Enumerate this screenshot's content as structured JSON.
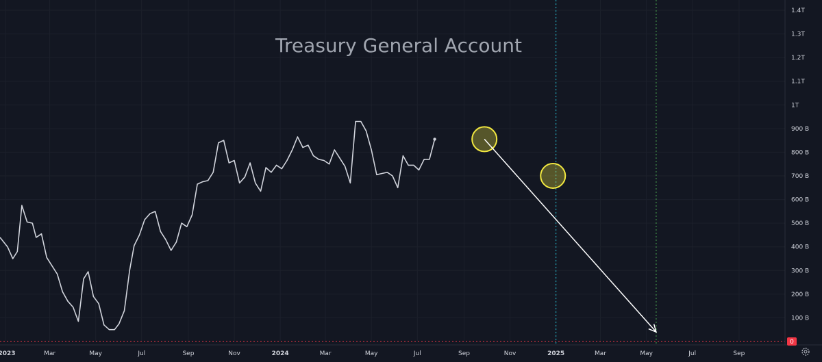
{
  "chart_data": {
    "type": "line",
    "title": "Treasury General Account",
    "y_ticks": [
      {
        "value": 100,
        "label": "100 B"
      },
      {
        "value": 200,
        "label": "200 B"
      },
      {
        "value": 300,
        "label": "300 B"
      },
      {
        "value": 400,
        "label": "400 B"
      },
      {
        "value": 500,
        "label": "500 B"
      },
      {
        "value": 600,
        "label": "600 B"
      },
      {
        "value": 700,
        "label": "700 B"
      },
      {
        "value": 800,
        "label": "800 B"
      },
      {
        "value": 900,
        "label": "900 B"
      },
      {
        "value": 1000,
        "label": "1T"
      },
      {
        "value": 1100,
        "label": "1.1T"
      },
      {
        "value": 1200,
        "label": "1.2T"
      },
      {
        "value": 1300,
        "label": "1.3T"
      },
      {
        "value": 1400,
        "label": "1.4T"
      }
    ],
    "zero_label": "0",
    "ylim": [
      0,
      1400
    ],
    "x_ticks": [
      {
        "date": "2023-01-01",
        "label": "2023",
        "bold": true
      },
      {
        "date": "2023-03-01",
        "label": "Mar"
      },
      {
        "date": "2023-05-01",
        "label": "May"
      },
      {
        "date": "2023-07-01",
        "label": "Jul"
      },
      {
        "date": "2023-09-01",
        "label": "Sep"
      },
      {
        "date": "2023-11-01",
        "label": "Nov"
      },
      {
        "date": "2024-01-01",
        "label": "2024",
        "bold": true
      },
      {
        "date": "2024-03-01",
        "label": "Mar"
      },
      {
        "date": "2024-05-01",
        "label": "May"
      },
      {
        "date": "2024-07-01",
        "label": "Jul"
      },
      {
        "date": "2024-09-01",
        "label": "Sep"
      },
      {
        "date": "2024-11-01",
        "label": "Nov"
      },
      {
        "date": "2025-01-01",
        "label": "2025",
        "bold": true
      },
      {
        "date": "2025-03-01",
        "label": "Mar"
      },
      {
        "date": "2025-05-01",
        "label": "May"
      },
      {
        "date": "2025-07-01",
        "label": "Jul"
      },
      {
        "date": "2025-09-01",
        "label": "Sep"
      }
    ],
    "xlim": [
      "2022-12-25",
      "2025-11-01"
    ],
    "series": [
      {
        "name": "",
        "color": "#d1d4dc",
        "points": [
          [
            "2022-12-25",
            440
          ],
          [
            "2023-01-04",
            400
          ],
          [
            "2023-01-11",
            350
          ],
          [
            "2023-01-17",
            380
          ],
          [
            "2023-01-23",
            575
          ],
          [
            "2023-01-30",
            505
          ],
          [
            "2023-02-06",
            500
          ],
          [
            "2023-02-11",
            440
          ],
          [
            "2023-02-18",
            455
          ],
          [
            "2023-02-25",
            355
          ],
          [
            "2023-03-04",
            320
          ],
          [
            "2023-03-11",
            285
          ],
          [
            "2023-03-18",
            210
          ],
          [
            "2023-03-25",
            170
          ],
          [
            "2023-04-01",
            145
          ],
          [
            "2023-04-08",
            85
          ],
          [
            "2023-04-15",
            265
          ],
          [
            "2023-04-21",
            295
          ],
          [
            "2023-04-28",
            190
          ],
          [
            "2023-05-05",
            160
          ],
          [
            "2023-05-12",
            70
          ],
          [
            "2023-05-19",
            50
          ],
          [
            "2023-05-26",
            50
          ],
          [
            "2023-06-01",
            75
          ],
          [
            "2023-06-08",
            130
          ],
          [
            "2023-06-15",
            300
          ],
          [
            "2023-06-21",
            405
          ],
          [
            "2023-06-28",
            450
          ],
          [
            "2023-07-05",
            515
          ],
          [
            "2023-07-12",
            540
          ],
          [
            "2023-07-19",
            550
          ],
          [
            "2023-07-26",
            465
          ],
          [
            "2023-08-02",
            430
          ],
          [
            "2023-08-09",
            385
          ],
          [
            "2023-08-16",
            420
          ],
          [
            "2023-08-23",
            500
          ],
          [
            "2023-08-30",
            485
          ],
          [
            "2023-09-06",
            535
          ],
          [
            "2023-09-13",
            665
          ],
          [
            "2023-09-20",
            675
          ],
          [
            "2023-09-27",
            680
          ],
          [
            "2023-10-04",
            715
          ],
          [
            "2023-10-11",
            840
          ],
          [
            "2023-10-18",
            850
          ],
          [
            "2023-10-25",
            755
          ],
          [
            "2023-11-01",
            765
          ],
          [
            "2023-11-08",
            670
          ],
          [
            "2023-11-15",
            695
          ],
          [
            "2023-11-22",
            755
          ],
          [
            "2023-11-29",
            670
          ],
          [
            "2023-12-06",
            635
          ],
          [
            "2023-12-13",
            735
          ],
          [
            "2023-12-20",
            715
          ],
          [
            "2023-12-27",
            745
          ],
          [
            "2024-01-03",
            730
          ],
          [
            "2024-01-10",
            765
          ],
          [
            "2024-01-17",
            810
          ],
          [
            "2024-01-24",
            865
          ],
          [
            "2024-01-31",
            820
          ],
          [
            "2024-02-07",
            830
          ],
          [
            "2024-02-14",
            785
          ],
          [
            "2024-02-21",
            770
          ],
          [
            "2024-02-28",
            765
          ],
          [
            "2024-03-06",
            750
          ],
          [
            "2024-03-13",
            810
          ],
          [
            "2024-03-20",
            775
          ],
          [
            "2024-03-27",
            740
          ],
          [
            "2024-04-03",
            670
          ],
          [
            "2024-04-10",
            930
          ],
          [
            "2024-04-17",
            930
          ],
          [
            "2024-04-24",
            890
          ],
          [
            "2024-05-01",
            810
          ],
          [
            "2024-05-08",
            705
          ],
          [
            "2024-05-15",
            710
          ],
          [
            "2024-05-22",
            715
          ],
          [
            "2024-05-29",
            700
          ],
          [
            "2024-06-05",
            650
          ],
          [
            "2024-06-12",
            785
          ],
          [
            "2024-06-19",
            745
          ],
          [
            "2024-06-26",
            745
          ],
          [
            "2024-07-03",
            725
          ],
          [
            "2024-07-10",
            770
          ],
          [
            "2024-07-17",
            770
          ],
          [
            "2024-07-24",
            855
          ]
        ]
      }
    ],
    "annotations": [
      {
        "type": "circle",
        "date": "2024-09-28",
        "value": 855,
        "color": "#f2e840"
      },
      {
        "type": "circle",
        "date": "2024-12-28",
        "value": 700,
        "color": "#f2e840"
      },
      {
        "type": "arrow",
        "from": [
          "2024-09-28",
          855
        ],
        "to": [
          "2025-05-14",
          40
        ],
        "color": "#ffffff"
      },
      {
        "type": "vline",
        "date": "2025-01-01",
        "color": "#26c6da"
      },
      {
        "type": "vline",
        "date": "2025-05-14",
        "color": "#4caf50"
      },
      {
        "type": "hline",
        "value": 0,
        "color": "#f23645"
      }
    ],
    "grid": true,
    "y_axis_position": "right",
    "background": "#131722",
    "settings_icon": "gear-icon"
  }
}
